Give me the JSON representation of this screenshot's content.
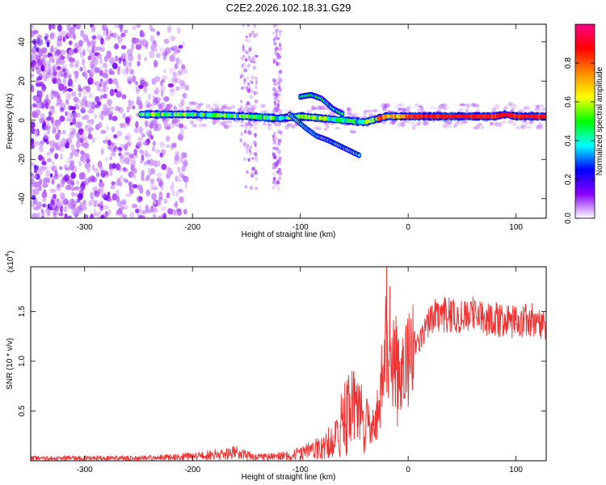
{
  "title": "C2E2.2026.102.18.31.G29",
  "chart_data": [
    {
      "type": "heatmap",
      "name": "spectrogram",
      "xlabel": "Height of straight line (km)",
      "ylabel": "Frequency (Hz)",
      "xlim": [
        -350,
        128
      ],
      "ylim": [
        -50,
        49
      ],
      "x_ticks": [
        -300,
        -200,
        -100,
        0,
        100
      ],
      "y_ticks": [
        -40,
        -20,
        0,
        20,
        40
      ],
      "colorbar": {
        "label": "Normalized spectral amplitude",
        "range": [
          0.0,
          1.0
        ],
        "ticks": [
          "0.0",
          "0.2",
          "0.4",
          "0.6",
          "0.8"
        ],
        "tick_values": [
          0.0,
          0.2,
          0.4,
          0.6,
          0.8
        ],
        "colors": [
          "#ffffff",
          "#8800ff",
          "#0000ff",
          "#00ffff",
          "#00ff00",
          "#ffff00",
          "#ff8800",
          "#ff0000",
          "#ff0088"
        ]
      },
      "track": {
        "description": "main signal ridge (x km, frequency Hz)",
        "points": [
          [
            -250,
            3
          ],
          [
            -200,
            3
          ],
          [
            -150,
            2
          ],
          [
            -120,
            1
          ],
          [
            -100,
            2
          ],
          [
            -80,
            1
          ],
          [
            -60,
            0
          ],
          [
            -40,
            -1
          ],
          [
            -20,
            2
          ],
          [
            0,
            2
          ],
          [
            50,
            2
          ],
          [
            80,
            2
          ],
          [
            90,
            3
          ],
          [
            100,
            2
          ],
          [
            128,
            2
          ]
        ]
      },
      "branch": {
        "description": "descending side branch (x km, frequency Hz)",
        "points": [
          [
            -110,
            3
          ],
          [
            -95,
            -4
          ],
          [
            -85,
            -8
          ],
          [
            -75,
            -10
          ],
          [
            -60,
            -14
          ],
          [
            -45,
            -18
          ]
        ]
      },
      "upper_arc": {
        "description": "upper arc feature (x km, frequency Hz)",
        "points": [
          [
            -100,
            12
          ],
          [
            -90,
            13
          ],
          [
            -80,
            11
          ],
          [
            -70,
            6
          ],
          [
            -60,
            3
          ]
        ]
      },
      "noise_region": {
        "x": [
          -350,
          -205
        ],
        "y": [
          -50,
          49
        ]
      },
      "noise_bands": [
        [
          -155,
          -140
        ],
        [
          -125,
          -118
        ]
      ]
    },
    {
      "type": "line",
      "name": "snr",
      "xlabel": "Height of straight line (km)",
      "ylabel": "SNR (10 * v/v)",
      "multiplier": "(x10",
      "multiplier_exp": "4",
      "multiplier_close": ")",
      "xlim": [
        -350,
        128
      ],
      "ylim": [
        0,
        1.95
      ],
      "x_ticks": [
        -300,
        -200,
        -100,
        0,
        100
      ],
      "y_ticks": [
        0.5,
        1.0,
        1.5
      ],
      "y_tick_labels": [
        "0.5",
        "1.0",
        "1.5"
      ],
      "series_color": "#ee3333",
      "envelope": {
        "x": [
          -350,
          -250,
          -220,
          -200,
          -180,
          -160,
          -150,
          -140,
          -120,
          -100,
          -80,
          -70,
          -60,
          -50,
          -40,
          -35,
          -30,
          -25,
          -22,
          -20,
          -18,
          -15,
          -10,
          -5,
          0,
          10,
          20,
          30,
          40,
          60,
          80,
          100,
          115,
          128
        ],
        "y": [
          0.03,
          0.03,
          0.04,
          0.05,
          0.07,
          0.09,
          0.06,
          0.04,
          0.05,
          0.08,
          0.15,
          0.25,
          0.45,
          0.55,
          0.4,
          0.35,
          0.4,
          0.8,
          1.1,
          1.25,
          1.1,
          1.05,
          1.05,
          0.95,
          1.1,
          1.25,
          1.42,
          1.5,
          1.5,
          1.48,
          1.45,
          1.42,
          1.45,
          1.4
        ]
      },
      "spikes": [
        [
          -20,
          1.95
        ],
        [
          -17,
          1.75
        ],
        [
          -52,
          0.9
        ],
        [
          -55,
          0.86
        ],
        [
          25,
          1.62
        ],
        [
          60,
          1.65
        ],
        [
          40,
          1.6
        ],
        [
          -10,
          0.35
        ]
      ]
    }
  ]
}
